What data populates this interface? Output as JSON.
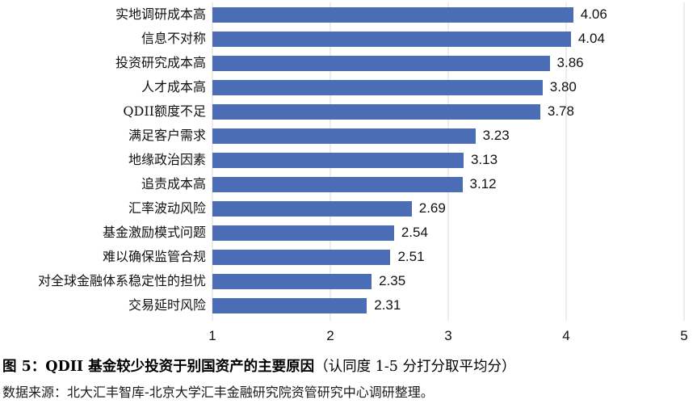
{
  "chart_data": {
    "type": "bar",
    "orientation": "horizontal",
    "title": "",
    "xlabel": "",
    "ylabel": "",
    "xlim": [
      1,
      5
    ],
    "x_ticks": [
      "1",
      "2",
      "3",
      "4",
      "5"
    ],
    "grid": true,
    "legend": false,
    "bar_color": "#4a6db5",
    "gridline_color": "#d9d9d9",
    "categories": [
      "实地调研成本高",
      "信息不对称",
      "投资研究成本高",
      "人才成本高",
      "QDII额度不足",
      "满足客户需求",
      "地缘政治因素",
      "追责成本高",
      "汇率波动风险",
      "基金激励模式问题",
      "难以确保监管合规",
      "对全球金融体系稳定性的担忧",
      "交易延时风险"
    ],
    "values": [
      4.06,
      4.04,
      3.86,
      3.8,
      3.78,
      3.23,
      3.13,
      3.12,
      2.69,
      2.54,
      2.51,
      2.35,
      2.31
    ],
    "value_labels": [
      "4.06",
      "4.04",
      "3.86",
      "3.80",
      "3.78",
      "3.23",
      "3.13",
      "3.12",
      "2.69",
      "2.54",
      "2.51",
      "2.35",
      "2.31"
    ]
  },
  "caption": {
    "title_bold": "图 5：QDII 基金较少投资于别国资产的主要原因",
    "title_note": "（认同度 1-5 分打分取平均分）",
    "source": "数据来源：北大汇丰智库-北京大学汇丰金融研究院资管研究中心调研整理。"
  }
}
